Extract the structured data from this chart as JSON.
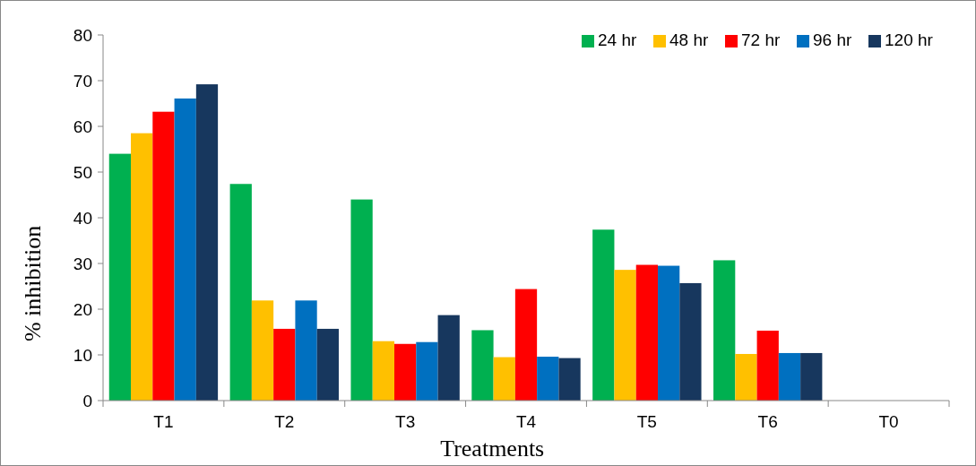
{
  "chart_data": {
    "type": "bar",
    "xlabel": "Treatments",
    "ylabel": "% inhibition",
    "categories": [
      "T1",
      "T2",
      "T3",
      "T4",
      "T5",
      "T6",
      "T0"
    ],
    "series": [
      {
        "name": "24 hr",
        "color": "#00b050",
        "values": [
          54.0,
          47.4,
          44.0,
          15.4,
          37.4,
          30.7,
          0
        ]
      },
      {
        "name": "48 hr",
        "color": "#ffc000",
        "values": [
          58.5,
          21.9,
          13.0,
          9.5,
          28.6,
          10.2,
          0
        ]
      },
      {
        "name": "72 hr",
        "color": "#ff0000",
        "values": [
          63.2,
          15.7,
          12.4,
          24.4,
          29.7,
          15.3,
          0
        ]
      },
      {
        "name": "96 hr",
        "color": "#0070c0",
        "values": [
          66.1,
          21.9,
          12.8,
          9.6,
          29.5,
          10.4,
          0
        ]
      },
      {
        "name": "120 hr",
        "color": "#17375e",
        "values": [
          69.2,
          15.7,
          18.7,
          9.3,
          25.7,
          10.4,
          0
        ]
      }
    ],
    "ylim": [
      0,
      80
    ],
    "yticks": [
      0,
      10,
      20,
      30,
      40,
      50,
      60,
      70,
      80
    ],
    "grid": false,
    "legend": "top right"
  }
}
